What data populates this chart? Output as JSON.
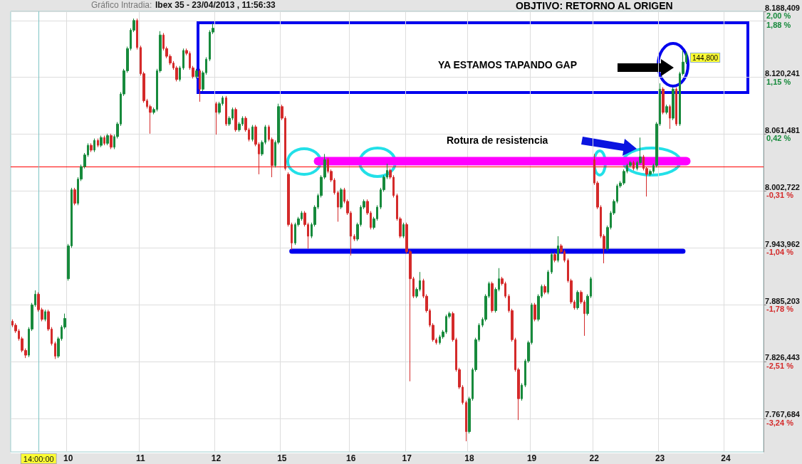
{
  "chart_data": {
    "type": "candlestick",
    "title": "Ibex 35 - 23/04/2013 , 11:56:33",
    "subtitle": "Gráfico Intradia:",
    "annotations": [
      "OBJTIVO: RETORNO AL ORIGEN",
      "YA ESTAMOS TAPANDO GAP",
      "Rotura de resistencia",
      "144,800"
    ],
    "categories": [
      null,
      null,
      null,
      null,
      null,
      null,
      null,
      null,
      "14:00:00",
      null,
      null,
      null,
      null,
      null,
      null,
      null,
      null,
      "10",
      null,
      null,
      null,
      null,
      null,
      null,
      null,
      null,
      null,
      null,
      null,
      null,
      null,
      null,
      null,
      null,
      null,
      null,
      null,
      null,
      null,
      "11",
      null,
      null,
      null,
      null,
      null,
      null,
      null,
      null,
      null,
      null,
      null,
      null,
      null,
      null,
      null,
      null,
      null,
      null,
      null,
      null,
      null,
      null,
      "12",
      null,
      null,
      null,
      null,
      null,
      null,
      null,
      null,
      null,
      null,
      null,
      null,
      null,
      null,
      null,
      null,
      null,
      null,
      null,
      "15",
      null,
      null,
      null,
      null,
      null,
      null,
      null,
      null,
      null,
      null,
      null,
      null,
      null,
      null,
      null,
      null,
      null,
      null,
      null,
      null,
      "16",
      null,
      null,
      null,
      null,
      null,
      null,
      null,
      null,
      null,
      null,
      null,
      null,
      null,
      null,
      null,
      null,
      "17",
      null,
      null,
      null,
      null,
      null,
      null,
      null,
      null,
      null,
      null,
      null,
      null,
      null,
      null,
      null,
      null,
      null,
      null,
      "18",
      null,
      null,
      null,
      null,
      null,
      null,
      null,
      null,
      null,
      null,
      null,
      null,
      null,
      null,
      null,
      null,
      null,
      null,
      "19",
      null,
      null,
      null,
      null,
      null,
      null,
      null,
      null,
      null,
      null,
      null,
      null,
      null,
      null,
      null,
      null,
      null,
      null,
      "22",
      null,
      null,
      null,
      null,
      null,
      null,
      null,
      null,
      null,
      null,
      null,
      null,
      null,
      null,
      null,
      null,
      null,
      null,
      null,
      "23",
      null,
      null,
      null,
      null,
      null,
      null,
      null,
      null,
      null,
      null,
      null,
      null,
      null,
      null,
      null,
      null,
      null,
      null,
      null,
      "24",
      null,
      null,
      null,
      null,
      null,
      null,
      null,
      null,
      null,
      null,
      null
    ],
    "ohlc": [
      [
        7868,
        7870,
        7862,
        7864
      ],
      [
        7864,
        7866,
        7856,
        7858
      ],
      [
        7858,
        7860,
        7848,
        7850
      ],
      [
        7850,
        7852,
        7836,
        7838
      ],
      [
        7838,
        7840,
        7830,
        7833
      ],
      [
        7833,
        7862,
        7831,
        7860
      ],
      [
        7860,
        7887,
        7858,
        7885
      ],
      [
        7885,
        7900,
        7883,
        7896
      ],
      [
        7896,
        7898,
        7878,
        7880
      ],
      [
        7880,
        7882,
        7868,
        7870
      ],
      [
        7870,
        7880,
        7868,
        7878
      ],
      [
        7878,
        7880,
        7858,
        7860
      ],
      [
        7860,
        7862,
        7843,
        7845
      ],
      [
        7845,
        7847,
        7829,
        7832
      ],
      [
        7832,
        7852,
        7830,
        7850
      ],
      [
        7850,
        7864,
        7848,
        7862
      ],
      [
        7862,
        7876,
        7860,
        7871
      ],
      [
        7912,
        7948,
        7910,
        7946
      ],
      [
        7946,
        8006,
        7944,
        8004
      ],
      [
        8004,
        8006,
        7988,
        7990
      ],
      [
        7990,
        8017,
        7988,
        8015
      ],
      [
        8015,
        8030,
        8013,
        8028
      ],
      [
        8028,
        8042,
        8026,
        8040
      ],
      [
        8040,
        8052,
        8038,
        8050
      ],
      [
        8050,
        8052,
        8043,
        8045
      ],
      [
        8045,
        8057,
        8043,
        8055
      ],
      [
        8055,
        8057,
        8048,
        8050
      ],
      [
        8050,
        8060,
        8048,
        8058
      ],
      [
        8058,
        8060,
        8050,
        8052
      ],
      [
        8052,
        8062,
        8050,
        8060
      ],
      [
        8060,
        8062,
        8046,
        8048
      ],
      [
        8048,
        8061,
        8046,
        8059
      ],
      [
        8059,
        8074,
        8057,
        8072
      ],
      [
        8072,
        8105,
        8070,
        8103
      ],
      [
        8103,
        8129,
        8101,
        8127
      ],
      [
        8127,
        8152,
        8125,
        8150
      ],
      [
        8150,
        8171,
        8148,
        8169
      ],
      [
        8169,
        8181,
        8167,
        8179
      ],
      [
        8179,
        8181,
        8149,
        8151
      ],
      [
        8151,
        8153,
        8122,
        8124
      ],
      [
        8124,
        8126,
        8094,
        8096
      ],
      [
        8096,
        8098,
        8088,
        8090
      ],
      [
        8090,
        8092,
        8062,
        8084
      ],
      [
        8084,
        8089,
        8082,
        8087
      ],
      [
        8087,
        8129,
        8085,
        8127
      ],
      [
        8127,
        8168,
        8125,
        8164
      ],
      [
        8164,
        8166,
        8148,
        8150
      ],
      [
        8150,
        8152,
        8140,
        8142
      ],
      [
        8142,
        8144,
        8133,
        8135
      ],
      [
        8135,
        8137,
        8128,
        8130
      ],
      [
        8130,
        8132,
        8116,
        8118
      ],
      [
        8118,
        8132,
        8116,
        8130
      ],
      [
        8130,
        8150,
        8128,
        8148
      ],
      [
        8148,
        8150,
        8143,
        8145
      ],
      [
        8145,
        8147,
        8128,
        8130
      ],
      [
        8130,
        8132,
        8119,
        8121
      ],
      [
        8121,
        8129,
        8119,
        8127
      ],
      [
        8127,
        8129,
        8095,
        8108
      ],
      [
        8108,
        8127,
        8106,
        8125
      ],
      [
        8125,
        8141,
        8123,
        8139
      ],
      [
        8139,
        8169,
        8137,
        8167
      ],
      [
        8167,
        8176,
        8165,
        8171
      ],
      [
        8093,
        8095,
        8061,
        8084
      ],
      [
        8084,
        8095,
        8082,
        8093
      ],
      [
        8093,
        8101,
        8091,
        8099
      ],
      [
        8099,
        8101,
        8070,
        8072
      ],
      [
        8072,
        8080,
        8070,
        8078
      ],
      [
        8078,
        8089,
        8076,
        8087
      ],
      [
        8087,
        8089,
        8064,
        8066
      ],
      [
        8066,
        8074,
        8064,
        8072
      ],
      [
        8072,
        8080,
        8070,
        8078
      ],
      [
        8078,
        8080,
        8064,
        8066
      ],
      [
        8066,
        8068,
        8054,
        8056
      ],
      [
        8056,
        8071,
        8054,
        8069
      ],
      [
        8069,
        8071,
        8049,
        8051
      ],
      [
        8051,
        8053,
        8020,
        8041
      ],
      [
        8041,
        8055,
        8039,
        8053
      ],
      [
        8053,
        8071,
        8051,
        8069
      ],
      [
        8069,
        8071,
        8054,
        8056
      ],
      [
        8056,
        8058,
        8017,
        8029
      ],
      [
        8029,
        8055,
        8027,
        8053
      ],
      [
        8053,
        8093,
        8051,
        8090
      ],
      [
        8090,
        8092,
        8076,
        8078
      ],
      [
        8078,
        8080,
        8024,
        8026
      ],
      [
        8020,
        8022,
        7966,
        7968
      ],
      [
        7968,
        7970,
        7942,
        7949
      ],
      [
        7949,
        7970,
        7947,
        7968
      ],
      [
        7968,
        7976,
        7966,
        7974
      ],
      [
        7974,
        7982,
        7972,
        7980
      ],
      [
        7980,
        7982,
        7966,
        7968
      ],
      [
        7968,
        7970,
        7943,
        7956
      ],
      [
        7956,
        7970,
        7954,
        7968
      ],
      [
        7968,
        7988,
        7966,
        7986
      ],
      [
        7986,
        8000,
        7984,
        7998
      ],
      [
        7998,
        8019,
        7996,
        8017
      ],
      [
        8017,
        8041,
        8015,
        8035
      ],
      [
        8035,
        8037,
        8021,
        8023
      ],
      [
        8023,
        8025,
        8012,
        8014
      ],
      [
        8014,
        8016,
        7999,
        8001
      ],
      [
        8001,
        8003,
        7971,
        7986
      ],
      [
        7986,
        8006,
        7984,
        8004
      ],
      [
        8004,
        8006,
        7990,
        7992
      ],
      [
        7992,
        7994,
        7978,
        7980
      ],
      [
        7980,
        7982,
        7936,
        7956
      ],
      [
        7956,
        7958,
        7951,
        7953
      ],
      [
        7953,
        7970,
        7951,
        7968
      ],
      [
        7968,
        7988,
        7966,
        7986
      ],
      [
        7986,
        7994,
        7984,
        7992
      ],
      [
        7992,
        7994,
        7978,
        7980
      ],
      [
        7980,
        7982,
        7963,
        7965
      ],
      [
        7965,
        7976,
        7963,
        7974
      ],
      [
        7974,
        7988,
        7972,
        7986
      ],
      [
        7986,
        8006,
        7984,
        8004
      ],
      [
        8004,
        8019,
        8002,
        8017
      ],
      [
        8017,
        8031,
        8015,
        8024
      ],
      [
        8024,
        8026,
        8015,
        8017
      ],
      [
        8017,
        8019,
        7996,
        7998
      ],
      [
        7998,
        8000,
        7972,
        7974
      ],
      [
        7974,
        7976,
        7954,
        7956
      ],
      [
        7956,
        7970,
        7954,
        7968
      ],
      [
        7968,
        7970,
        7938,
        7940
      ],
      [
        7940,
        7942,
        7806,
        7912
      ],
      [
        7912,
        7914,
        7892,
        7894
      ],
      [
        7894,
        7903,
        7892,
        7901
      ],
      [
        7901,
        7919,
        7899,
        7910
      ],
      [
        7910,
        7912,
        7892,
        7894
      ],
      [
        7894,
        7896,
        7877,
        7879
      ],
      [
        7879,
        7881,
        7862,
        7864
      ],
      [
        7864,
        7866,
        7847,
        7849
      ],
      [
        7849,
        7851,
        7844,
        7846
      ],
      [
        7846,
        7854,
        7844,
        7852
      ],
      [
        7852,
        7859,
        7850,
        7857
      ],
      [
        7857,
        7875,
        7855,
        7873
      ],
      [
        7873,
        7878,
        7871,
        7876
      ],
      [
        7876,
        7878,
        7847,
        7849
      ],
      [
        7849,
        7851,
        7816,
        7818
      ],
      [
        7818,
        7820,
        7798,
        7800
      ],
      [
        7800,
        7802,
        7782,
        7784
      ],
      [
        7784,
        7786,
        7744,
        7754
      ],
      [
        7754,
        7790,
        7752,
        7788
      ],
      [
        7788,
        7820,
        7786,
        7818
      ],
      [
        7818,
        7851,
        7816,
        7849
      ],
      [
        7849,
        7866,
        7847,
        7864
      ],
      [
        7864,
        7872,
        7862,
        7870
      ],
      [
        7870,
        7896,
        7868,
        7894
      ],
      [
        7894,
        7909,
        7892,
        7907
      ],
      [
        7907,
        7909,
        7877,
        7879
      ],
      [
        7879,
        7903,
        7877,
        7901
      ],
      [
        7901,
        7923,
        7899,
        7912
      ],
      [
        7912,
        7914,
        7905,
        7907
      ],
      [
        7907,
        7909,
        7892,
        7894
      ],
      [
        7894,
        7896,
        7877,
        7879
      ],
      [
        7879,
        7881,
        7847,
        7849
      ],
      [
        7849,
        7851,
        7816,
        7818
      ],
      [
        7818,
        7820,
        7766,
        7788
      ],
      [
        7788,
        7804,
        7786,
        7802
      ],
      [
        7802,
        7829,
        7800,
        7827
      ],
      [
        7827,
        7848,
        7825,
        7846
      ],
      [
        7846,
        7887,
        7844,
        7885
      ],
      [
        7885,
        7887,
        7868,
        7870
      ],
      [
        7870,
        7896,
        7868,
        7894
      ],
      [
        7894,
        7906,
        7892,
        7904
      ],
      [
        7904,
        7906,
        7896,
        7898
      ],
      [
        7898,
        7921,
        7896,
        7919
      ],
      [
        7919,
        7939,
        7917,
        7937
      ],
      [
        7937,
        7939,
        7929,
        7931
      ],
      [
        7931,
        7956,
        7929,
        7946
      ],
      [
        7946,
        7948,
        7938,
        7940
      ],
      [
        7940,
        7942,
        7929,
        7931
      ],
      [
        7931,
        7933,
        7908,
        7910
      ],
      [
        7910,
        7912,
        7886,
        7888
      ],
      [
        7888,
        7890,
        7880,
        7882
      ],
      [
        7882,
        7900,
        7880,
        7898
      ],
      [
        7898,
        7900,
        7886,
        7888
      ],
      [
        7888,
        7890,
        7853,
        7876
      ],
      [
        7876,
        7896,
        7874,
        7894
      ],
      [
        7894,
        7914,
        7892,
        7912
      ],
      [
        8035,
        8041,
        8009,
        8011
      ],
      [
        8011,
        8013,
        7984,
        7986
      ],
      [
        7986,
        7988,
        7954,
        7956
      ],
      [
        7956,
        7958,
        7928,
        7943
      ],
      [
        7943,
        7967,
        7941,
        7965
      ],
      [
        7965,
        7982,
        7963,
        7980
      ],
      [
        7980,
        7994,
        7978,
        7992
      ],
      [
        7992,
        8010,
        7990,
        8008
      ],
      [
        8008,
        8013,
        8006,
        8011
      ],
      [
        8011,
        8025,
        8009,
        8023
      ],
      [
        8023,
        8031,
        8021,
        8029
      ],
      [
        8029,
        8034,
        8027,
        8032
      ],
      [
        8032,
        8034,
        8024,
        8026
      ],
      [
        8026,
        8034,
        8024,
        8032
      ],
      [
        8032,
        8058,
        8030,
        8038
      ],
      [
        8038,
        8040,
        8024,
        8026
      ],
      [
        8026,
        8028,
        7997,
        8020
      ],
      [
        8020,
        8025,
        8018,
        8023
      ],
      [
        8023,
        8031,
        8021,
        8029
      ],
      [
        8029,
        8074,
        8027,
        8072
      ],
      [
        8072,
        8114,
        8070,
        8108
      ],
      [
        8108,
        8110,
        8082,
        8084
      ],
      [
        8084,
        8092,
        8082,
        8090
      ],
      [
        8090,
        8092,
        8067,
        8078
      ],
      [
        8078,
        8110,
        8076,
        8108
      ],
      [
        8108,
        8110,
        8070,
        8072
      ],
      [
        8072,
        8126,
        8070,
        8124
      ],
      [
        8124,
        8148,
        8122,
        8136
      ],
      [
        8136,
        8147,
        8134,
        8144.8
      ],
      null,
      null,
      null,
      null,
      null,
      null,
      null,
      null,
      null,
      null,
      null,
      null,
      null,
      null,
      null,
      null,
      null,
      null,
      null,
      null,
      null,
      null,
      null
    ],
    "colors": [
      "#d42a2a",
      "#d42a2a",
      "#d42a2a",
      "#d42a2a",
      "#d42a2a",
      "#178a3c",
      "#178a3c",
      "#178a3c",
      "#d42a2a",
      "#d42a2a",
      "#178a3c",
      "#d42a2a",
      "#d42a2a",
      "#d42a2a",
      "#178a3c",
      "#178a3c",
      "#178a3c",
      "#178a3c",
      "#178a3c",
      "#d42a2a",
      "#178a3c",
      "#178a3c",
      "#178a3c",
      "#178a3c",
      "#d42a2a",
      "#178a3c",
      "#d42a2a",
      "#178a3c",
      "#d42a2a",
      "#178a3c",
      "#d42a2a",
      "#178a3c",
      "#178a3c",
      "#178a3c",
      "#178a3c",
      "#178a3c",
      "#178a3c",
      "#178a3c",
      "#d42a2a",
      "#d42a2a",
      "#d42a2a",
      "#d42a2a",
      "#d42a2a",
      "#178a3c",
      "#178a3c",
      "#178a3c",
      "#d42a2a",
      "#d42a2a",
      "#d42a2a",
      "#d42a2a",
      "#d42a2a",
      "#178a3c",
      "#178a3c",
      "#d42a2a",
      "#d42a2a",
      "#d42a2a",
      "#178a3c",
      "#d42a2a",
      "#178a3c",
      "#178a3c",
      "#178a3c",
      "#178a3c",
      "#d42a2a",
      "#178a3c",
      "#178a3c",
      "#d42a2a",
      "#178a3c",
      "#178a3c",
      "#d42a2a",
      "#178a3c",
      "#178a3c",
      "#d42a2a",
      "#d42a2a",
      "#178a3c",
      "#d42a2a",
      "#d42a2a",
      "#178a3c",
      "#178a3c",
      "#d42a2a",
      "#d42a2a",
      "#178a3c",
      "#178a3c",
      "#d42a2a",
      "#d42a2a",
      "#d42a2a",
      "#d42a2a",
      "#178a3c",
      "#178a3c",
      "#178a3c",
      "#d42a2a",
      "#d42a2a",
      "#178a3c",
      "#178a3c",
      "#178a3c",
      "#178a3c",
      "#178a3c",
      "#d42a2a",
      "#d42a2a",
      "#d42a2a",
      "#d42a2a",
      "#178a3c",
      "#d42a2a",
      "#d42a2a",
      "#d42a2a",
      "#d42a2a",
      "#178a3c",
      "#178a3c",
      "#178a3c",
      "#d42a2a",
      "#d42a2a",
      "#178a3c",
      "#178a3c",
      "#178a3c",
      "#178a3c",
      "#178a3c",
      "#d42a2a",
      "#d42a2a",
      "#d42a2a",
      "#d42a2a",
      "#178a3c",
      "#d42a2a",
      "#d42a2a",
      "#d42a2a",
      "#178a3c",
      "#178a3c",
      "#d42a2a",
      "#d42a2a",
      "#d42a2a",
      "#d42a2a",
      "#d42a2a",
      "#178a3c",
      "#178a3c",
      "#178a3c",
      "#178a3c",
      "#d42a2a",
      "#d42a2a",
      "#d42a2a",
      "#d42a2a",
      "#d42a2a",
      "#178a3c",
      "#178a3c",
      "#178a3c",
      "#178a3c",
      "#178a3c",
      "#178a3c",
      "#178a3c",
      "#d42a2a",
      "#178a3c",
      "#178a3c",
      "#d42a2a",
      "#d42a2a",
      "#d42a2a",
      "#d42a2a",
      "#d42a2a",
      "#d42a2a",
      "#178a3c",
      "#178a3c",
      "#178a3c",
      "#178a3c",
      "#d42a2a",
      "#178a3c",
      "#178a3c",
      "#d42a2a",
      "#178a3c",
      "#178a3c",
      "#d42a2a",
      "#178a3c",
      "#d42a2a",
      "#d42a2a",
      "#d42a2a",
      "#d42a2a",
      "#d42a2a",
      "#178a3c",
      "#d42a2a",
      "#d42a2a",
      "#178a3c",
      "#178a3c",
      "#d42a2a",
      "#d42a2a",
      "#d42a2a",
      "#d42a2a",
      "#178a3c",
      "#178a3c",
      "#178a3c",
      "#178a3c",
      "#178a3c",
      "#178a3c",
      "#178a3c",
      "#178a3c",
      "#d42a2a",
      "#178a3c",
      "#178a3c",
      "#d42a2a",
      "#d42a2a",
      "#178a3c",
      "#178a3c",
      "#178a3c",
      "#178a3c",
      "#d42a2a",
      "#178a3c",
      "#d42a2a",
      "#178a3c",
      "#d42a2a",
      "#178a3c",
      "#178a3c",
      "#178a3c",
      null,
      null,
      null,
      null,
      null,
      null,
      null,
      null,
      null,
      null,
      null,
      null,
      null,
      null,
      null,
      null,
      null,
      null,
      null,
      null,
      null,
      null,
      null
    ],
    "ylim": [
      7733,
      8188.409
    ],
    "yticks": [
      {
        "value": 7767.684,
        "label": "7.767,684"
      },
      {
        "value": 7826.443,
        "label": "7.826,443"
      },
      {
        "value": 7885.203,
        "label": "7.885,203"
      },
      {
        "value": 7943.962,
        "label": "7.943,962"
      },
      {
        "value": 8002.722,
        "label": "8.002,722"
      },
      {
        "value": 8061.481,
        "label": "8.061,481"
      },
      {
        "value": 8120.241,
        "label": "8.120,241"
      },
      {
        "value": 8179.0,
        "label": null
      },
      {
        "value": 8188.409,
        "label": "8.188,409"
      }
    ],
    "y2lim": [
      -3.67,
      2.003
    ],
    "y2ticks": [
      {
        "value": -3.24,
        "label": "-3,24 %"
      },
      {
        "value": -2.51,
        "label": "-2,51 %"
      },
      {
        "value": -1.78,
        "label": "-1,78 %"
      },
      {
        "value": -1.04,
        "label": "-1,04 %"
      },
      {
        "value": -0.31,
        "label": "-0,31 %"
      },
      {
        "value": 0.42,
        "label": "0,42 %"
      },
      {
        "value": 1.15,
        "label": "1,15 %"
      },
      {
        "value": 1.88,
        "label": "1,88 %"
      },
      {
        "value": 2.0,
        "label": "2,00 %"
      }
    ],
    "grid": true,
    "ref_lines": [
      {
        "axis": "y",
        "value": 8027.6,
        "color": "#ff0000"
      },
      {
        "axis": "x",
        "value": "14:00:00",
        "color": "#7fc4c4"
      }
    ],
    "series": [
      {
        "type": "line",
        "color": "#ff00ff",
        "values": [
          null,
          null,
          null,
          null,
          null,
          null,
          null,
          null,
          null,
          null,
          null,
          null,
          null,
          null,
          null,
          null,
          null,
          null,
          null,
          null,
          null,
          null,
          null,
          null,
          null,
          null,
          null,
          null,
          null,
          null,
          null,
          null,
          null,
          null,
          null,
          null,
          null,
          null,
          null,
          null,
          null,
          null,
          null,
          null,
          null,
          null,
          null,
          null,
          null,
          null,
          null,
          null,
          null,
          null,
          null,
          null,
          null,
          null,
          null,
          null,
          null,
          null,
          null,
          null,
          null,
          null,
          null,
          null,
          null,
          null,
          null,
          null,
          null,
          null,
          null,
          null,
          null,
          null,
          null,
          null,
          null,
          null,
          null,
          null,
          null,
          null,
          null,
          null,
          null,
          null,
          null,
          null,
          null,
          8033.6,
          8033.6,
          8033.6,
          8033.6,
          8033.6,
          8033.6,
          8033.6,
          8033.6,
          8033.6,
          8033.6,
          8033.6,
          8033.6,
          8033.6,
          8033.6,
          8033.6,
          8033.6,
          8033.6,
          8033.6,
          8033.6,
          8033.6,
          8033.6,
          8033.6,
          8033.6,
          8033.6,
          8033.6,
          8033.6,
          8033.6,
          8033.6,
          8033.6,
          8033.6,
          8033.6,
          8033.6,
          8033.6,
          8033.6,
          8033.6,
          8033.6,
          8033.6,
          8033.6,
          8033.6,
          8033.6,
          8033.6,
          8033.6,
          8033.6,
          8033.6,
          8033.6,
          8033.6,
          8033.6,
          8033.6,
          8033.6,
          8033.6,
          8033.6,
          8033.6,
          8033.6,
          8033.6,
          8033.6,
          8033.6,
          8033.6,
          8033.6,
          8033.6,
          8033.6,
          8033.6,
          8033.6,
          8033.6,
          8033.6,
          8033.6,
          8033.6,
          8033.6,
          8033.6,
          8033.6,
          8033.6,
          8033.6,
          8033.6,
          8033.6,
          8033.6,
          8033.6,
          8033.6,
          8033.6,
          8033.6,
          8033.6,
          8033.6,
          8033.6,
          8033.6,
          8033.6,
          8033.6,
          8033.6,
          8033.6,
          8033.6,
          8033.6,
          8033.6,
          8033.6,
          8033.6,
          8033.6,
          8033.6,
          8033.6,
          8033.6,
          8033.6,
          8033.6,
          8033.6,
          8033.6,
          8033.6,
          8033.6,
          8033.6,
          8033.6,
          8033.6,
          8033.6,
          8033.6,
          8033.6,
          8033.6,
          8033.6,
          8033.6,
          8033.6,
          8033.6,
          8033.6,
          null,
          null,
          null,
          null,
          null,
          null,
          null,
          null,
          null,
          null,
          null,
          null,
          null,
          null,
          null,
          null,
          null,
          null,
          null,
          null,
          null,
          null,
          null
        ]
      },
      {
        "type": "line",
        "color": "#0000ee",
        "values": [
          null,
          null,
          null,
          null,
          null,
          null,
          null,
          null,
          null,
          null,
          null,
          null,
          null,
          null,
          null,
          null,
          null,
          null,
          null,
          null,
          null,
          null,
          null,
          null,
          null,
          null,
          null,
          null,
          null,
          null,
          null,
          null,
          null,
          null,
          null,
          null,
          null,
          null,
          null,
          null,
          null,
          null,
          null,
          null,
          null,
          null,
          null,
          null,
          null,
          null,
          null,
          null,
          null,
          null,
          null,
          null,
          null,
          null,
          null,
          null,
          null,
          null,
          null,
          null,
          null,
          null,
          null,
          null,
          null,
          null,
          null,
          null,
          null,
          null,
          null,
          null,
          null,
          null,
          null,
          null,
          null,
          null,
          null,
          null,
          null,
          7940.4,
          7940.4,
          7940.4,
          7940.4,
          7940.4,
          7940.4,
          7940.4,
          7940.4,
          7940.4,
          7940.4,
          7940.4,
          7940.4,
          7940.4,
          7940.4,
          7940.4,
          7940.4,
          7940.4,
          7940.4,
          7940.4,
          7940.4,
          7940.4,
          7940.4,
          7940.4,
          7940.4,
          7940.4,
          7940.4,
          7940.4,
          7940.4,
          7940.4,
          7940.4,
          7940.4,
          7940.4,
          7940.4,
          7940.4,
          7940.4,
          7940.4,
          7940.4,
          7940.4,
          7940.4,
          7940.4,
          7940.4,
          7940.4,
          7940.4,
          7940.4,
          7940.4,
          7940.4,
          7940.4,
          7940.4,
          7940.4,
          7940.4,
          7940.4,
          7940.4,
          7940.4,
          7940.4,
          7940.4,
          7940.4,
          7940.4,
          7940.4,
          7940.4,
          7940.4,
          7940.4,
          7940.4,
          7940.4,
          7940.4,
          7940.4,
          7940.4,
          7940.4,
          7940.4,
          7940.4,
          7940.4,
          7940.4,
          7940.4,
          7940.4,
          7940.4,
          7940.4,
          7940.4,
          7940.4,
          7940.4,
          7940.4,
          7940.4,
          7940.4,
          7940.4,
          7940.4,
          7940.4,
          7940.4,
          7940.4,
          7940.4,
          7940.4,
          7940.4,
          7940.4,
          7940.4,
          7940.4,
          7940.4,
          7940.4,
          7940.4,
          7940.4,
          7940.4,
          7940.4,
          7940.4,
          7940.4,
          7940.4,
          7940.4,
          7940.4,
          7940.4,
          7940.4,
          7940.4,
          7940.4,
          7940.4,
          7940.4,
          7940.4,
          7940.4,
          7940.4,
          7940.4,
          7940.4,
          7940.4,
          7940.4,
          7940.4,
          7940.4,
          7940.4,
          7940.4,
          null,
          null,
          null,
          null,
          null,
          null,
          null,
          null,
          null,
          null,
          null,
          null,
          null,
          null,
          null,
          null,
          null,
          null,
          null,
          null,
          null,
          null,
          null,
          null
        ]
      }
    ]
  }
}
